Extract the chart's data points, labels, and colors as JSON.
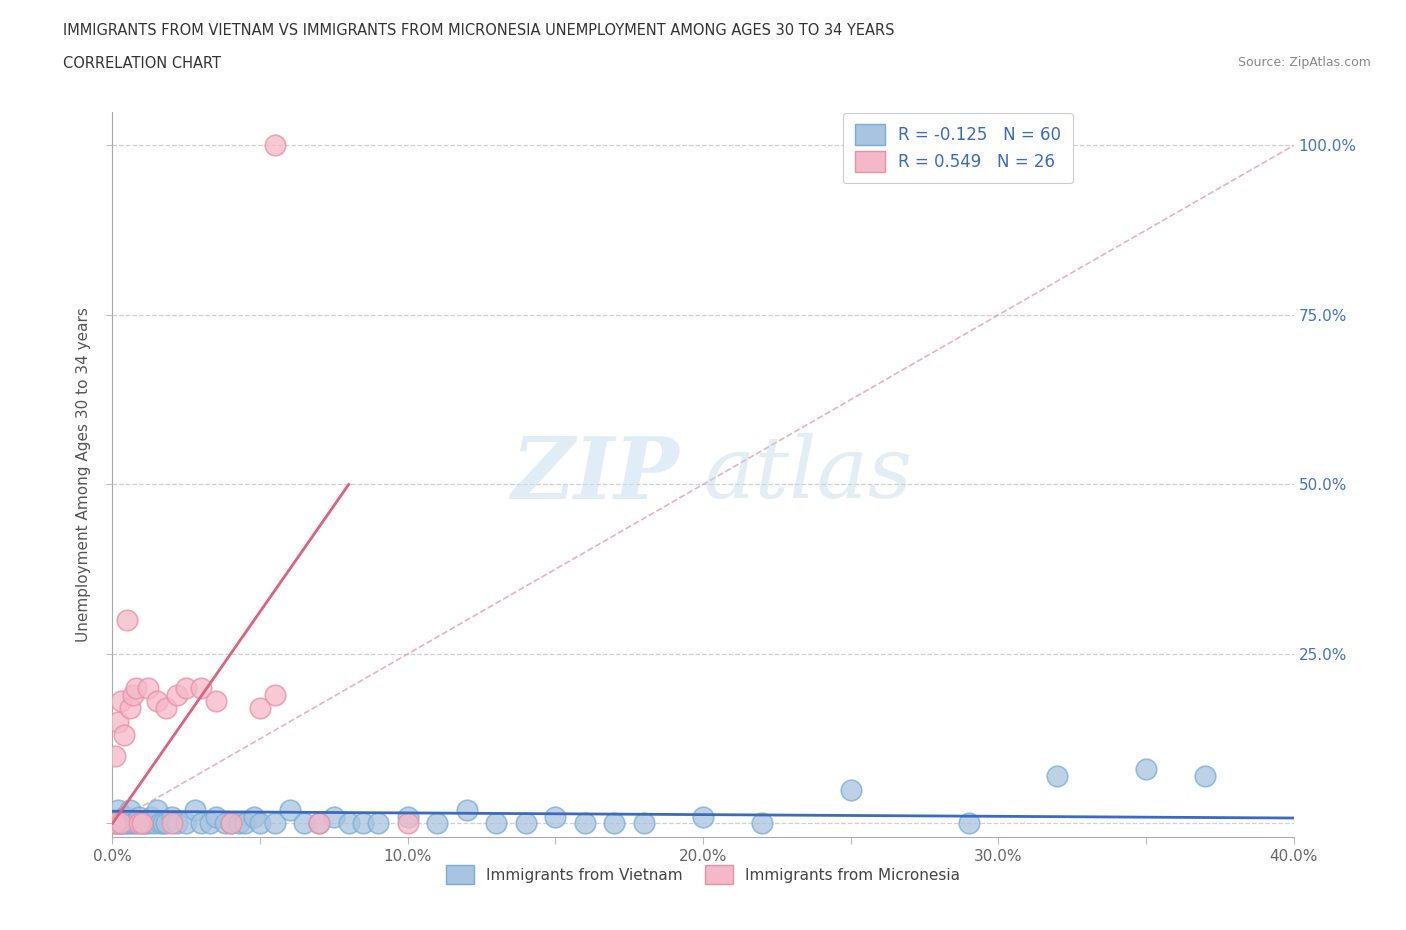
{
  "title_line1": "IMMIGRANTS FROM VIETNAM VS IMMIGRANTS FROM MICRONESIA UNEMPLOYMENT AMONG AGES 30 TO 34 YEARS",
  "title_line2": "CORRELATION CHART",
  "source_text": "Source: ZipAtlas.com",
  "ylabel": "Unemployment Among Ages 30 to 34 years",
  "xlim": [
    0.0,
    0.4
  ],
  "ylim": [
    -0.02,
    1.05
  ],
  "xtick_vals": [
    0.0,
    0.05,
    0.1,
    0.15,
    0.2,
    0.25,
    0.3,
    0.35,
    0.4
  ],
  "xticklabels": [
    "0.0%",
    "",
    "10.0%",
    "",
    "20.0%",
    "",
    "30.0%",
    "",
    "40.0%"
  ],
  "ytick_vals": [
    0.0,
    0.25,
    0.5,
    0.75,
    1.0
  ],
  "right_yticklabels": [
    "",
    "25.0%",
    "50.0%",
    "75.0%",
    "100.0%"
  ],
  "vietnam_color": "#a8c4e0",
  "vietnam_edge_color": "#7aadd4",
  "micronesia_color": "#f4b8c8",
  "micronesia_edge_color": "#e890a8",
  "vietnam_line_color": "#3a6bbf",
  "micronesia_line_color": "#e06080",
  "diag_line_color": "#e0a0b0",
  "R_vietnam": -0.125,
  "N_vietnam": 60,
  "R_micronesia": 0.549,
  "N_micronesia": 26,
  "legend_label_vietnam": "Immigrants from Vietnam",
  "legend_label_micronesia": "Immigrants from Micronesia",
  "watermark_zip": "ZIP",
  "watermark_atlas": "atlas",
  "vietnam_x": [
    0.001,
    0.002,
    0.002,
    0.003,
    0.003,
    0.004,
    0.004,
    0.005,
    0.005,
    0.006,
    0.006,
    0.007,
    0.008,
    0.009,
    0.01,
    0.011,
    0.012,
    0.013,
    0.014,
    0.015,
    0.016,
    0.017,
    0.018,
    0.02,
    0.022,
    0.025,
    0.028,
    0.03,
    0.033,
    0.035,
    0.038,
    0.04,
    0.043,
    0.045,
    0.048,
    0.05,
    0.055,
    0.06,
    0.065,
    0.07,
    0.075,
    0.08,
    0.085,
    0.09,
    0.1,
    0.11,
    0.12,
    0.13,
    0.14,
    0.15,
    0.16,
    0.17,
    0.18,
    0.2,
    0.22,
    0.25,
    0.29,
    0.32,
    0.35,
    0.37
  ],
  "vietnam_y": [
    0.0,
    0.0,
    0.02,
    0.0,
    0.0,
    0.01,
    0.0,
    0.0,
    0.01,
    0.0,
    0.02,
    0.0,
    0.0,
    0.01,
    0.0,
    0.0,
    0.0,
    0.01,
    0.0,
    0.02,
    0.0,
    0.0,
    0.0,
    0.01,
    0.0,
    0.0,
    0.02,
    0.0,
    0.0,
    0.01,
    0.0,
    0.0,
    0.0,
    0.0,
    0.01,
    0.0,
    0.0,
    0.02,
    0.0,
    0.0,
    0.01,
    0.0,
    0.0,
    0.0,
    0.01,
    0.0,
    0.02,
    0.0,
    0.0,
    0.01,
    0.0,
    0.0,
    0.0,
    0.01,
    0.0,
    0.05,
    0.0,
    0.07,
    0.08,
    0.07
  ],
  "micronesia_x": [
    0.001,
    0.001,
    0.002,
    0.003,
    0.003,
    0.004,
    0.005,
    0.006,
    0.007,
    0.008,
    0.009,
    0.01,
    0.012,
    0.015,
    0.018,
    0.02,
    0.022,
    0.025,
    0.03,
    0.035,
    0.04,
    0.05,
    0.055,
    0.07,
    0.1,
    0.055
  ],
  "micronesia_y": [
    0.0,
    0.1,
    0.15,
    0.18,
    0.0,
    0.13,
    0.3,
    0.17,
    0.19,
    0.2,
    0.0,
    0.0,
    0.2,
    0.18,
    0.17,
    0.0,
    0.19,
    0.2,
    0.2,
    0.18,
    0.0,
    0.17,
    0.19,
    0.0,
    0.0,
    1.0
  ],
  "micro_trend_x0": 0.0,
  "micro_trend_x1": 0.08,
  "micro_trend_y0": 0.0,
  "micro_trend_y1": 0.5,
  "viet_trend_x0": 0.0,
  "viet_trend_x1": 0.4,
  "viet_trend_y0": 0.018,
  "viet_trend_y1": 0.008
}
